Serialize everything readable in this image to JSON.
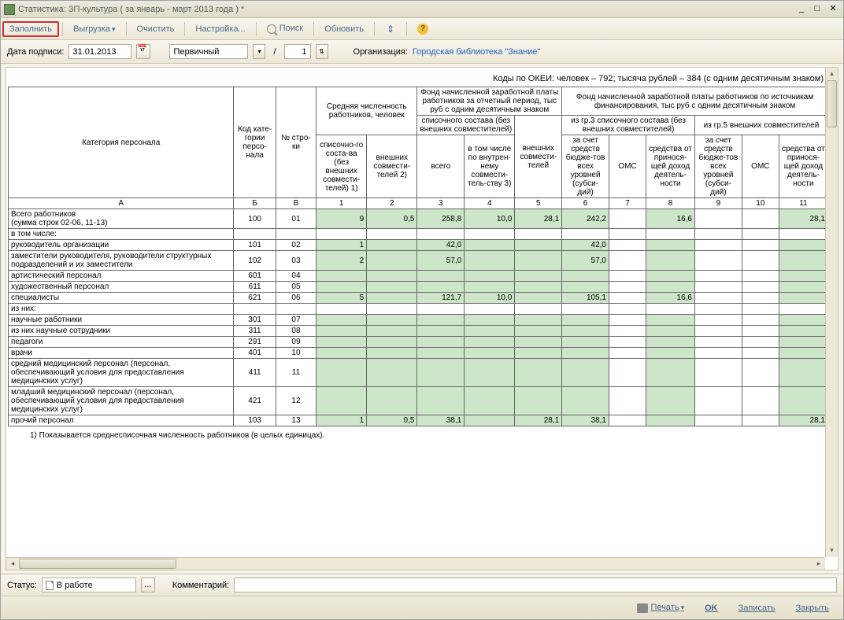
{
  "window": {
    "title": "Статистика: ЗП-культура ( за январь - март 2013 года ) *"
  },
  "toolbar": {
    "fill": "Заполнить",
    "export": "Выгрузка",
    "clear": "Очистить",
    "settings": "Настройка...",
    "search": "Поиск",
    "refresh": "Обновить"
  },
  "params": {
    "date_label": "Дата подписи:",
    "date": "31.01.2013",
    "type": "Первичный",
    "seq": "1",
    "org_label": "Организация:",
    "org": "Городская библиотека \"Знание\""
  },
  "okei": "Коды по ОКЕИ: человек – 792; тысяча рублей – 384 (с одним десятичным знаком)",
  "headers": {
    "cat": "Категория персонала",
    "code": "Код кате-гории персо-нала",
    "row": "№ стро-ки",
    "g1": "Средняя численность работников, человек",
    "g2": "Фонд начисленной заработной платы работников за отчетный период, тыс руб с одним десятичным знаком",
    "g3": "Фонд начисленной заработной платы работников по источникам финансирования, тыс руб с одним десятичным знаком",
    "c1": "списочно-го соста-ва (без внешних совмести-телей) 1)",
    "c2": "внешних совмести-телей 2)",
    "c34": "списочного состава (без внешних совместителей)",
    "c5": "внешних совмести-телей",
    "c3": "всего",
    "c4": "в том числе по внутрен-нему совмести-тель-ству 3)",
    "g3a": "из гр.3 списочного состава (без внешних совместителей)",
    "g3b": "из гр.5 внешних совместителей",
    "c6": "за счет средств бюдже-тов всех уровней (субси-дий)",
    "c7": "ОМС",
    "c8": "средства от принося-щей доход деятель-ности",
    "c9": "за счет средств бюдже-тов всех уровней (субси-дий)",
    "c10": "ОМС",
    "c11": "средства от принося-щей доход деятель-ности",
    "A": "А",
    "B": "Б",
    "V": "В",
    "n1": "1",
    "n2": "2",
    "n3": "3",
    "n4": "4",
    "n5": "5",
    "n6": "6",
    "n7": "7",
    "n8": "8",
    "n9": "9",
    "n10": "10",
    "n11": "11"
  },
  "rows": [
    {
      "label": "Всего работников\n(сумма строк 02-06, 11-13)",
      "code": "100",
      "n": "01",
      "v": [
        "9",
        "0,5",
        "258,8",
        "10,0",
        "28,1",
        "242,2",
        "",
        "16,6",
        "",
        "",
        "28,1"
      ],
      "g": [
        1,
        1,
        1,
        1,
        1,
        1,
        0,
        1,
        0,
        0,
        1
      ]
    },
    {
      "label": "в том числе:",
      "code": "",
      "n": "",
      "v": [
        "",
        "",
        "",
        "",
        "",
        "",
        "",
        "",
        "",
        "",
        ""
      ],
      "ind": 1
    },
    {
      "label": "руководитель организации",
      "code": "101",
      "n": "02",
      "v": [
        "1",
        "",
        "42,0",
        "",
        "",
        "42,0",
        "",
        "",
        "",
        "",
        ""
      ],
      "g": [
        1,
        1,
        1,
        1,
        1,
        1,
        0,
        1,
        0,
        0,
        1
      ],
      "ind": 1
    },
    {
      "label": "заместители руководителя, руководители структурных подразделений и их заместители",
      "code": "102",
      "n": "03",
      "v": [
        "2",
        "",
        "57,0",
        "",
        "",
        "57,0",
        "",
        "",
        "",
        "",
        ""
      ],
      "g": [
        1,
        1,
        1,
        1,
        1,
        1,
        0,
        1,
        0,
        0,
        1
      ],
      "ind": 1
    },
    {
      "label": "артистический персонал",
      "code": "601",
      "n": "04",
      "v": [
        "",
        "",
        "",
        "",
        "",
        "",
        "",
        "",
        "",
        "",
        ""
      ],
      "g": [
        1,
        1,
        1,
        1,
        1,
        1,
        0,
        1,
        0,
        0,
        1
      ],
      "ind": 1
    },
    {
      "label": "художественный персонал",
      "code": "611",
      "n": "05",
      "v": [
        "",
        "",
        "",
        "",
        "",
        "",
        "",
        "",
        "",
        "",
        ""
      ],
      "g": [
        1,
        1,
        1,
        1,
        1,
        1,
        0,
        1,
        0,
        0,
        1
      ],
      "ind": 1
    },
    {
      "label": "специалисты",
      "code": "621",
      "n": "06",
      "v": [
        "5",
        "",
        "121,7",
        "10,0",
        "",
        "105,1",
        "",
        "16,6",
        "",
        "",
        ""
      ],
      "g": [
        1,
        1,
        1,
        1,
        1,
        1,
        0,
        1,
        0,
        0,
        1
      ],
      "ind": 1
    },
    {
      "label": "из них:",
      "code": "",
      "n": "",
      "v": [
        "",
        "",
        "",
        "",
        "",
        "",
        "",
        "",
        "",
        "",
        ""
      ],
      "ind": 2
    },
    {
      "label": "научные работники",
      "code": "301",
      "n": "07",
      "v": [
        "",
        "",
        "",
        "",
        "",
        "",
        "",
        "",
        "",
        "",
        ""
      ],
      "g": [
        1,
        1,
        1,
        1,
        1,
        1,
        0,
        1,
        0,
        0,
        1
      ],
      "ind": 2
    },
    {
      "label": "из них научные сотрудники",
      "code": "311",
      "n": "08",
      "v": [
        "",
        "",
        "",
        "",
        "",
        "",
        "",
        "",
        "",
        "",
        ""
      ],
      "g": [
        1,
        1,
        1,
        1,
        1,
        1,
        0,
        1,
        0,
        0,
        1
      ],
      "ind": 2
    },
    {
      "label": "педагоги",
      "code": "291",
      "n": "09",
      "v": [
        "",
        "",
        "",
        "",
        "",
        "",
        "",
        "",
        "",
        "",
        ""
      ],
      "g": [
        1,
        1,
        1,
        1,
        1,
        1,
        0,
        1,
        0,
        0,
        1
      ],
      "ind": 2
    },
    {
      "label": "врачи",
      "code": "401",
      "n": "10",
      "v": [
        "",
        "",
        "",
        "",
        "",
        "",
        "",
        "",
        "",
        "",
        ""
      ],
      "g": [
        1,
        1,
        1,
        1,
        1,
        1,
        0,
        1,
        0,
        0,
        1
      ],
      "ind": 2
    },
    {
      "label": "средний медицинский персонал (персонал, обеспечивающий условия для предоставления медицинских услуг)",
      "code": "411",
      "n": "11",
      "v": [
        "",
        "",
        "",
        "",
        "",
        "",
        "",
        "",
        "",
        "",
        ""
      ],
      "g": [
        1,
        1,
        1,
        1,
        1,
        1,
        0,
        1,
        0,
        0,
        1
      ],
      "ind": 1
    },
    {
      "label": "младший медицинский персонал (персонал, обеспечивающий условия для предоставления медицинских услуг)",
      "code": "421",
      "n": "12",
      "v": [
        "",
        "",
        "",
        "",
        "",
        "",
        "",
        "",
        "",
        "",
        ""
      ],
      "g": [
        1,
        1,
        1,
        1,
        1,
        1,
        0,
        1,
        0,
        0,
        1
      ],
      "ind": 1
    },
    {
      "label": "прочий персонал",
      "code": "103",
      "n": "13",
      "v": [
        "1",
        "0,5",
        "38,1",
        "",
        "28,1",
        "38,1",
        "",
        "",
        "",
        "",
        "28,1"
      ],
      "g": [
        1,
        1,
        1,
        1,
        1,
        1,
        0,
        1,
        0,
        0,
        1
      ],
      "ind": 1
    }
  ],
  "footnote": "1) Показывается среднесписочная численность работников (в целых единицах).",
  "status": {
    "label": "Статус:",
    "value": "В работе",
    "comment_label": "Комментарий:"
  },
  "footer": {
    "print": "Печать",
    "ok": "OK",
    "save": "Записать",
    "close": "Закрыть"
  },
  "colors": {
    "green": "#cde5c9",
    "border": "#666666",
    "link": "#2060c0",
    "toolbar_bg": "#ede8d8"
  }
}
